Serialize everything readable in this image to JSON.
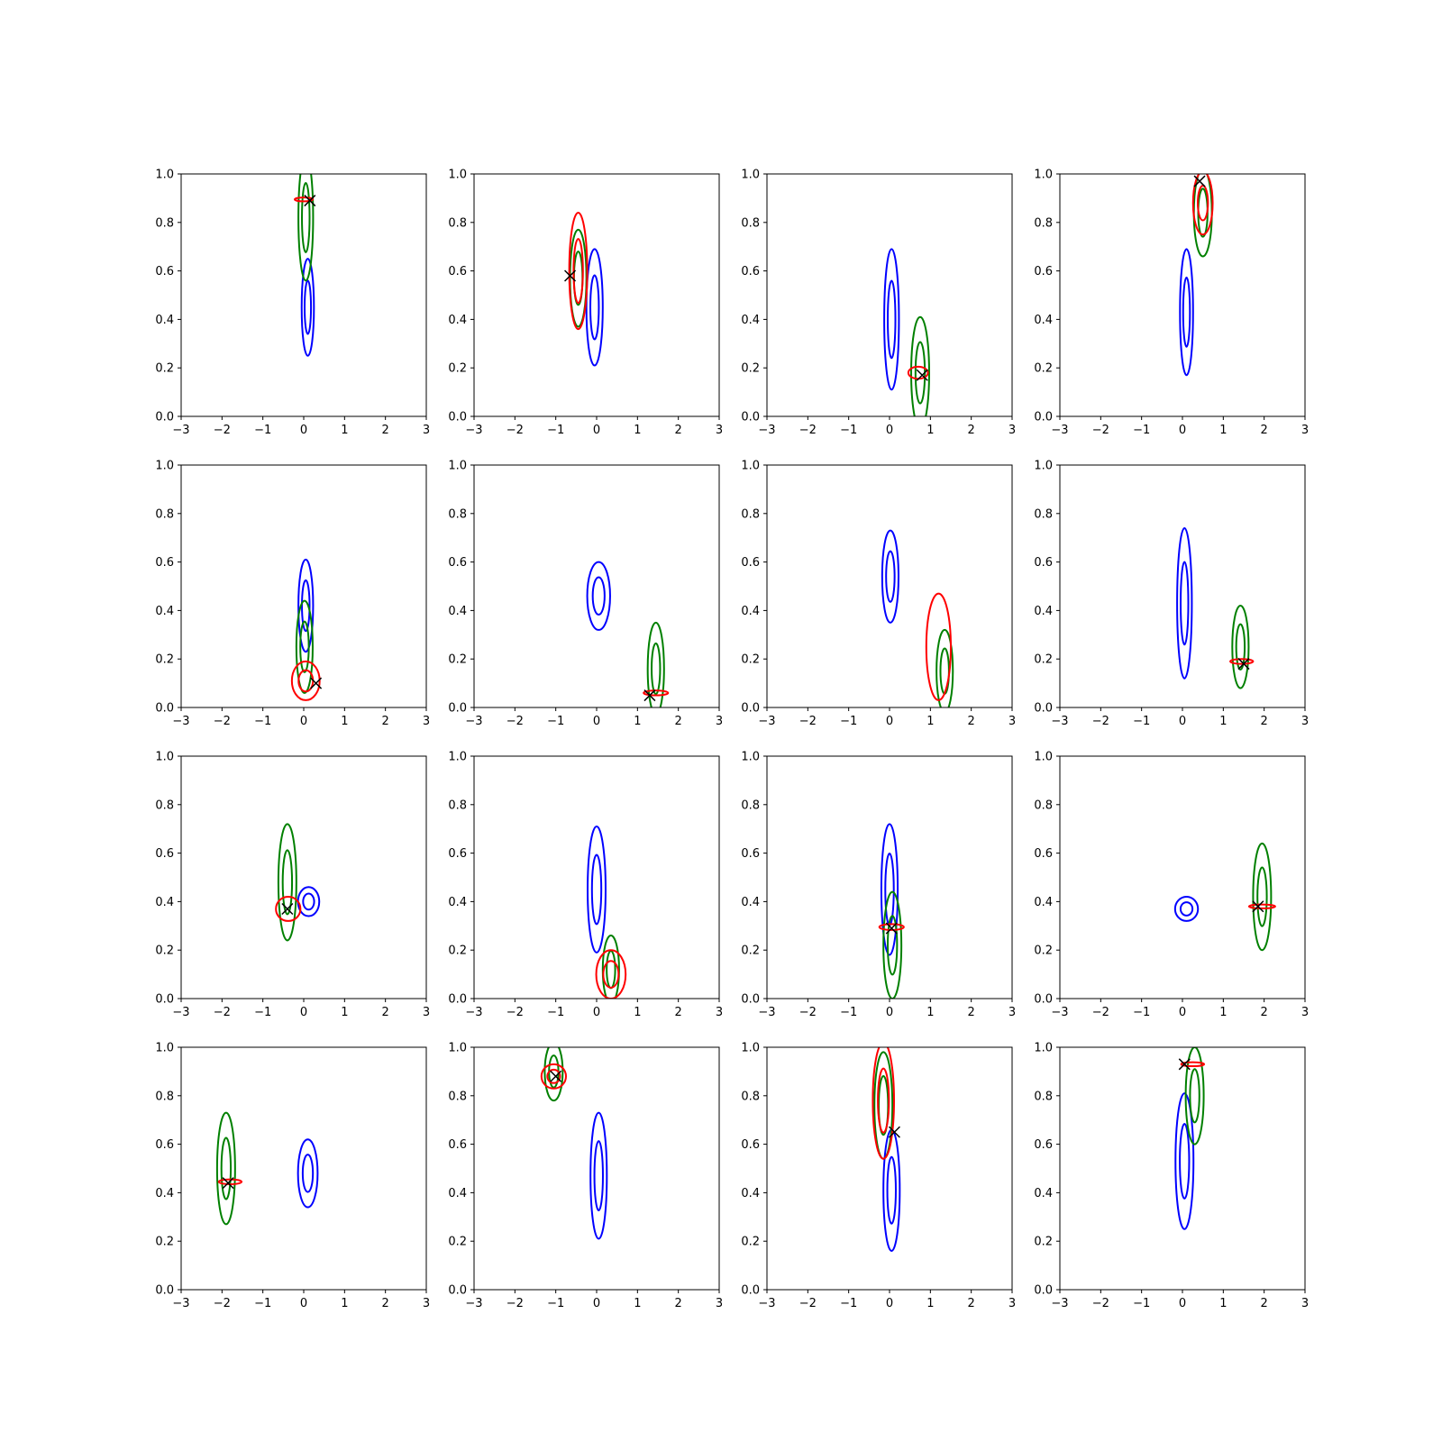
{
  "colors": {
    "blue": "#0000ff",
    "green": "#008000",
    "red": "#ff0000",
    "marker": "#000000"
  },
  "chart_data": {
    "type": "contour-grid",
    "rows": 4,
    "cols": 4,
    "xlim": [
      -3,
      3
    ],
    "ylim": [
      0,
      1
    ],
    "x_ticks": [
      "−3",
      "−2",
      "−1",
      "0",
      "1",
      "2",
      "3"
    ],
    "y_ticks": [
      "0.0",
      "0.2",
      "0.4",
      "0.6",
      "0.8",
      "1.0"
    ],
    "grid": false,
    "panels": [
      {
        "blue": {
          "cx": 0.1,
          "cy": 0.45,
          "sx": 0.15,
          "sy": 0.2,
          "outer": true,
          "inner": true
        },
        "green": {
          "cx": 0.05,
          "cy": 0.82,
          "sx": 0.18,
          "sy": 0.26,
          "outer": true,
          "inner": true
        },
        "red": {
          "cx": 0.0,
          "cy": 0.895,
          "sx": 0.22,
          "sy": 0.008,
          "outer": true,
          "inner": false
        },
        "marker": {
          "x": 0.15,
          "y": 0.89
        }
      },
      {
        "blue": {
          "cx": -0.05,
          "cy": 0.45,
          "sx": 0.2,
          "sy": 0.24,
          "outer": true,
          "inner": true
        },
        "green": {
          "cx": -0.45,
          "cy": 0.57,
          "sx": 0.2,
          "sy": 0.2,
          "outer": true,
          "inner": true
        },
        "red": {
          "cx": -0.45,
          "cy": 0.6,
          "sx": 0.22,
          "sy": 0.24,
          "outer": true,
          "inner": true
        },
        "marker": {
          "x": -0.65,
          "y": 0.58
        }
      },
      {
        "blue": {
          "cx": 0.05,
          "cy": 0.4,
          "sx": 0.18,
          "sy": 0.29,
          "outer": true,
          "inner": true
        },
        "green": {
          "cx": 0.75,
          "cy": 0.18,
          "sx": 0.22,
          "sy": 0.23,
          "outer": true,
          "inner": true
        },
        "red": {
          "cx": 0.7,
          "cy": 0.18,
          "sx": 0.24,
          "sy": 0.025,
          "outer": true,
          "inner": false
        },
        "marker": {
          "x": 0.8,
          "y": 0.17
        }
      },
      {
        "blue": {
          "cx": 0.1,
          "cy": 0.43,
          "sx": 0.16,
          "sy": 0.26,
          "outer": true,
          "inner": true
        },
        "green": {
          "cx": 0.5,
          "cy": 0.84,
          "sx": 0.22,
          "sy": 0.18,
          "outer": true,
          "inner": true
        },
        "red": {
          "cx": 0.5,
          "cy": 0.88,
          "sx": 0.24,
          "sy": 0.13,
          "outer": true,
          "inner": true
        },
        "marker": {
          "x": 0.42,
          "y": 0.97
        }
      },
      {
        "blue": {
          "cx": 0.05,
          "cy": 0.42,
          "sx": 0.18,
          "sy": 0.19,
          "outer": true,
          "inner": true
        },
        "green": {
          "cx": 0.02,
          "cy": 0.25,
          "sx": 0.2,
          "sy": 0.19,
          "outer": true,
          "inner": true
        },
        "red": {
          "cx": 0.05,
          "cy": 0.11,
          "sx": 0.34,
          "sy": 0.08,
          "outer": true,
          "inner": true
        },
        "marker": {
          "x": 0.3,
          "y": 0.1
        }
      },
      {
        "blue": {
          "cx": 0.05,
          "cy": 0.46,
          "sx": 0.28,
          "sy": 0.14,
          "outer": true,
          "inner": true
        },
        "green": {
          "cx": 1.45,
          "cy": 0.16,
          "sx": 0.2,
          "sy": 0.19,
          "outer": true,
          "inner": true
        },
        "red": {
          "cx": 1.45,
          "cy": 0.06,
          "sx": 0.3,
          "sy": 0.01,
          "outer": true,
          "inner": false
        },
        "marker": {
          "x": 1.3,
          "y": 0.05
        }
      },
      {
        "blue": {
          "cx": 0.02,
          "cy": 0.54,
          "sx": 0.2,
          "sy": 0.19,
          "outer": true,
          "inner": true
        },
        "green": {
          "cx": 1.35,
          "cy": 0.15,
          "sx": 0.2,
          "sy": 0.17,
          "outer": true,
          "inner": true
        },
        "red": {
          "cx": 1.2,
          "cy": 0.25,
          "sx": 0.3,
          "sy": 0.22,
          "outer": true,
          "inner": false
        },
        "marker": null
      },
      {
        "blue": {
          "cx": 0.05,
          "cy": 0.43,
          "sx": 0.18,
          "sy": 0.31,
          "outer": true,
          "inner": true
        },
        "green": {
          "cx": 1.42,
          "cy": 0.25,
          "sx": 0.2,
          "sy": 0.17,
          "outer": true,
          "inner": true
        },
        "red": {
          "cx": 1.45,
          "cy": 0.19,
          "sx": 0.28,
          "sy": 0.01,
          "outer": true,
          "inner": false
        },
        "marker": {
          "x": 1.5,
          "y": 0.18
        }
      },
      {
        "blue": {
          "cx": 0.12,
          "cy": 0.4,
          "sx": 0.26,
          "sy": 0.06,
          "outer": true,
          "inner": true
        },
        "green": {
          "cx": -0.4,
          "cy": 0.48,
          "sx": 0.22,
          "sy": 0.24,
          "outer": true,
          "inner": true
        },
        "red": {
          "cx": -0.38,
          "cy": 0.37,
          "sx": 0.3,
          "sy": 0.05,
          "outer": true,
          "inner": false
        },
        "marker": {
          "x": -0.4,
          "y": 0.37
        }
      },
      {
        "blue": {
          "cx": 0.0,
          "cy": 0.45,
          "sx": 0.22,
          "sy": 0.26,
          "outer": true,
          "inner": true
        },
        "green": {
          "cx": 0.35,
          "cy": 0.12,
          "sx": 0.2,
          "sy": 0.14,
          "outer": true,
          "inner": true
        },
        "red": {
          "cx": 0.35,
          "cy": 0.1,
          "sx": 0.36,
          "sy": 0.1,
          "outer": true,
          "inner": true
        },
        "marker": null
      },
      {
        "blue": {
          "cx": 0.0,
          "cy": 0.45,
          "sx": 0.2,
          "sy": 0.27,
          "outer": true,
          "inner": true
        },
        "green": {
          "cx": 0.07,
          "cy": 0.22,
          "sx": 0.22,
          "sy": 0.22,
          "outer": true,
          "inner": true
        },
        "red": {
          "cx": 0.05,
          "cy": 0.295,
          "sx": 0.3,
          "sy": 0.012,
          "outer": true,
          "inner": false
        },
        "marker": {
          "x": 0.05,
          "y": 0.29
        }
      },
      {
        "blue": {
          "cx": 0.1,
          "cy": 0.37,
          "sx": 0.28,
          "sy": 0.05,
          "outer": true,
          "inner": true
        },
        "green": {
          "cx": 1.95,
          "cy": 0.42,
          "sx": 0.22,
          "sy": 0.22,
          "outer": true,
          "inner": true
        },
        "red": {
          "cx": 1.95,
          "cy": 0.38,
          "sx": 0.32,
          "sy": 0.008,
          "outer": true,
          "inner": false
        },
        "marker": {
          "x": 1.85,
          "y": 0.38
        }
      },
      {
        "blue": {
          "cx": 0.1,
          "cy": 0.48,
          "sx": 0.24,
          "sy": 0.14,
          "outer": true,
          "inner": true
        },
        "green": {
          "cx": -1.9,
          "cy": 0.5,
          "sx": 0.22,
          "sy": 0.23,
          "outer": true,
          "inner": true
        },
        "red": {
          "cx": -1.8,
          "cy": 0.445,
          "sx": 0.28,
          "sy": 0.01,
          "outer": true,
          "inner": false
        },
        "marker": {
          "x": -1.85,
          "y": 0.44
        }
      },
      {
        "blue": {
          "cx": 0.05,
          "cy": 0.47,
          "sx": 0.2,
          "sy": 0.26,
          "outer": true,
          "inner": true
        },
        "green": {
          "cx": -1.05,
          "cy": 0.9,
          "sx": 0.22,
          "sy": 0.12,
          "outer": true,
          "inner": true
        },
        "red": {
          "cx": -1.05,
          "cy": 0.88,
          "sx": 0.3,
          "sy": 0.05,
          "outer": true,
          "inner": true
        },
        "marker": {
          "x": -1.0,
          "y": 0.88
        }
      },
      {
        "blue": {
          "cx": 0.05,
          "cy": 0.41,
          "sx": 0.2,
          "sy": 0.25,
          "outer": true,
          "inner": true
        },
        "green": {
          "cx": -0.15,
          "cy": 0.76,
          "sx": 0.22,
          "sy": 0.22,
          "outer": true,
          "inner": true
        },
        "red": {
          "cx": -0.15,
          "cy": 0.78,
          "sx": 0.26,
          "sy": 0.24,
          "outer": true,
          "inner": true
        },
        "marker": {
          "x": 0.12,
          "y": 0.65
        }
      },
      {
        "blue": {
          "cx": 0.05,
          "cy": 0.53,
          "sx": 0.22,
          "sy": 0.28,
          "outer": true,
          "inner": true
        },
        "green": {
          "cx": 0.3,
          "cy": 0.8,
          "sx": 0.22,
          "sy": 0.2,
          "outer": true,
          "inner": true
        },
        "red": {
          "cx": 0.25,
          "cy": 0.93,
          "sx": 0.28,
          "sy": 0.008,
          "outer": true,
          "inner": false
        },
        "marker": {
          "x": 0.05,
          "y": 0.93
        }
      }
    ]
  }
}
